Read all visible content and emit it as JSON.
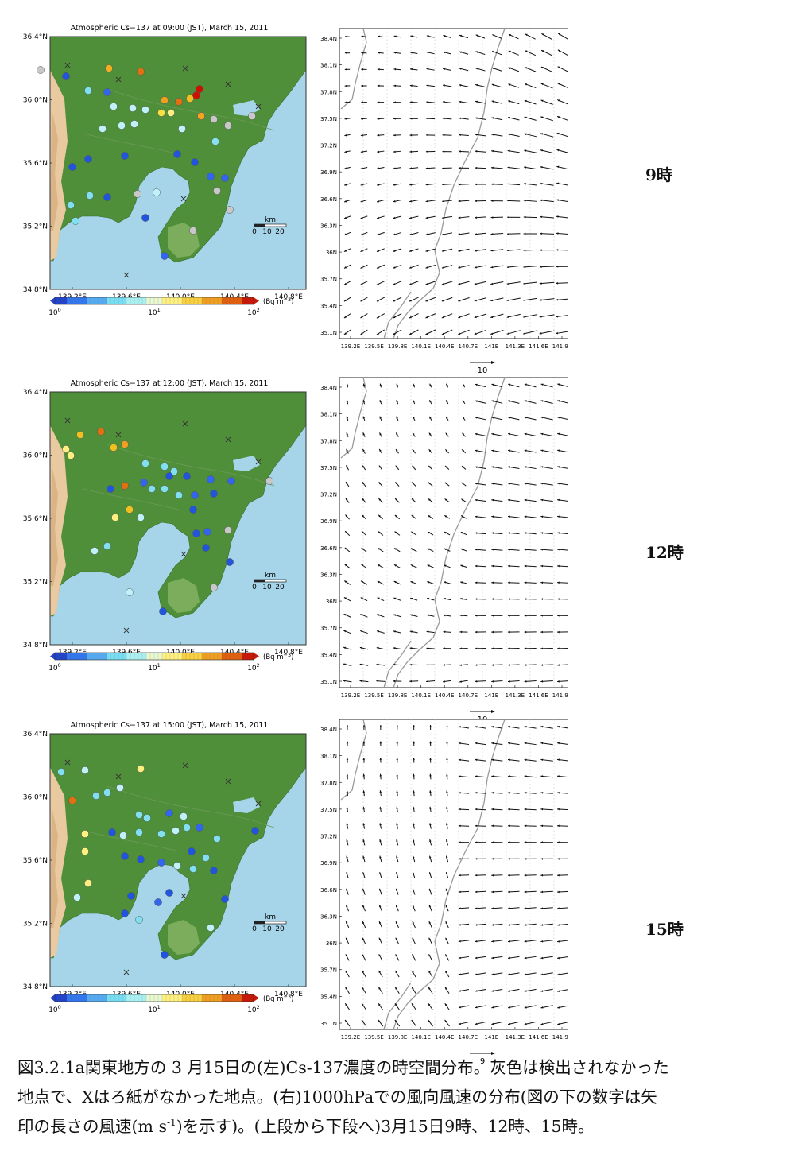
{
  "maps": [
    {
      "title": "Atmospheric Cs−137 at 09:00 (JST), March 15, 2011"
    },
    {
      "title": "Atmospheric Cs−137 at 12:00 (JST), March 15, 2011"
    },
    {
      "title": "Atmospheric Cs−137 at 15:00 (JST), March 15, 2011"
    }
  ],
  "map_axes": {
    "lat_labels": [
      "36.4°N",
      "36.0°N",
      "35.6°N",
      "35.2°N",
      "34.8°N"
    ],
    "lon_labels": [
      "139.2°E",
      "139.6°E",
      "140.0°E",
      "140.4°E",
      "140.8°E"
    ]
  },
  "scale_bar": {
    "unit": "km",
    "ticks": [
      "0",
      "10",
      "20"
    ]
  },
  "colorbar": {
    "ticks": [
      "10",
      "10",
      "10"
    ],
    "exps": [
      "0",
      "1",
      "2"
    ],
    "unit": "(Bq m",
    "unit_exp": "−3",
    "unit_close": ")"
  },
  "wind_axes": {
    "lat_labels": [
      "38.4N",
      "38.1N",
      "37.8N",
      "37.5N",
      "37.2N",
      "36.9N",
      "36.6N",
      "36.3N",
      "36N",
      "35.7N",
      "35.4N",
      "35.1N"
    ],
    "lon_labels": [
      "139.2E",
      "139.5E",
      "139.8E",
      "140.1E",
      "140.4E",
      "140.7E",
      "141E",
      "141.3E",
      "141.6E",
      "141.9E"
    ]
  },
  "wind_refs": [
    "10",
    "10",
    "9"
  ],
  "row_labels": [
    "9時",
    "12時",
    "15時"
  ],
  "caption": {
    "line1": "図3.2.1a関東地方の 3 月15日の(左)Cs-137濃度の時空間分布。灰色は検出されなかった",
    "line2": "地点で、Xはろ紙がなかった地点。(右)1000hPaでの風向風速の分布(図の下の数字は矢",
    "line3a": "印の長さの風速(m s",
    "line3sup": "-1",
    "line3b": ")を示す)。(上段から下段へ)3月15日9時、12時、15時。"
  }
}
